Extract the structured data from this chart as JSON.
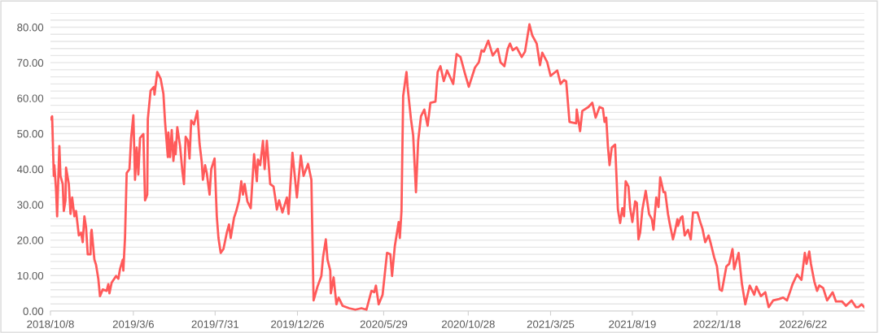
{
  "chart_data": {
    "type": "line",
    "grid": "y",
    "marker": "none",
    "line_style": "solid",
    "xlim": [
      "2018-10-08",
      "2022-10-10"
    ],
    "ylim": [
      0,
      84
    ],
    "xticks": [
      {
        "value": "2018-10-08",
        "label": "2018/10/8"
      },
      {
        "value": "2019-03-06",
        "label": "2019/3/6"
      },
      {
        "value": "2019-07-31",
        "label": "2019/7/31"
      },
      {
        "value": "2019-12-26",
        "label": "2019/12/26"
      },
      {
        "value": "2020-05-29",
        "label": "2020/5/29"
      },
      {
        "value": "2020-10-28",
        "label": "2020/10/28"
      },
      {
        "value": "2021-03-25",
        "label": "2021/3/25"
      },
      {
        "value": "2021-08-19",
        "label": "2021/8/19"
      },
      {
        "value": "2022-01-18",
        "label": "2022/1/18"
      },
      {
        "value": "2022-06-22",
        "label": "2022/6/22"
      }
    ],
    "yticks": [
      {
        "value": 0,
        "label": "0.00"
      },
      {
        "value": 2,
        "label": null
      },
      {
        "value": 4,
        "label": null
      },
      {
        "value": 6,
        "label": null
      },
      {
        "value": 8,
        "label": null
      },
      {
        "value": 10,
        "label": "10.00"
      },
      {
        "value": 12,
        "label": null
      },
      {
        "value": 14,
        "label": null
      },
      {
        "value": 16,
        "label": null
      },
      {
        "value": 18,
        "label": null
      },
      {
        "value": 20,
        "label": "20.00"
      },
      {
        "value": 22,
        "label": null
      },
      {
        "value": 24,
        "label": null
      },
      {
        "value": 26,
        "label": null
      },
      {
        "value": 28,
        "label": null
      },
      {
        "value": 30,
        "label": "30.00"
      },
      {
        "value": 32,
        "label": null
      },
      {
        "value": 34,
        "label": null
      },
      {
        "value": 36,
        "label": null
      },
      {
        "value": 38,
        "label": null
      },
      {
        "value": 40,
        "label": "40.00"
      },
      {
        "value": 42,
        "label": null
      },
      {
        "value": 44,
        "label": null
      },
      {
        "value": 46,
        "label": null
      },
      {
        "value": 48,
        "label": null
      },
      {
        "value": 50,
        "label": "50.00"
      },
      {
        "value": 52,
        "label": null
      },
      {
        "value": 54,
        "label": null
      },
      {
        "value": 56,
        "label": null
      },
      {
        "value": 58,
        "label": null
      },
      {
        "value": 60,
        "label": "60.00"
      },
      {
        "value": 62,
        "label": null
      },
      {
        "value": 64,
        "label": null
      },
      {
        "value": 66,
        "label": null
      },
      {
        "value": 68,
        "label": null
      },
      {
        "value": 70,
        "label": "70.00"
      },
      {
        "value": 72,
        "label": null
      },
      {
        "value": 74,
        "label": null
      },
      {
        "value": 76,
        "label": null
      },
      {
        "value": 78,
        "label": null
      },
      {
        "value": 80,
        "label": "80.00"
      },
      {
        "value": 82,
        "label": null
      },
      {
        "value": 84,
        "label": null
      }
    ],
    "series": [
      {
        "color": "#ff5a5a",
        "x": [
          "2018-10-08",
          "2018-10-11",
          "2018-10-14",
          "2018-10-15",
          "2018-10-18",
          "2018-10-20",
          "2018-10-24",
          "2018-10-26",
          "2018-10-30",
          "2018-11-01",
          "2018-11-04",
          "2018-11-05",
          "2018-11-10",
          "2018-11-13",
          "2018-11-16",
          "2018-11-20",
          "2018-11-23",
          "2018-11-28",
          "2018-12-02",
          "2018-12-05",
          "2018-12-08",
          "2018-12-11",
          "2018-12-14",
          "2018-12-19",
          "2018-12-20",
          "2018-12-21",
          "2018-12-26",
          "2018-12-29",
          "2019-01-02",
          "2019-01-05",
          "2019-01-10",
          "2019-01-17",
          "2019-01-20",
          "2019-01-22",
          "2019-01-26",
          "2019-02-03",
          "2019-02-07",
          "2019-02-10",
          "2019-02-15",
          "2019-02-16",
          "2019-02-19",
          "2019-02-22",
          "2019-02-27",
          "2019-03-02",
          "2019-03-06",
          "2019-03-09",
          "2019-03-12",
          "2019-03-15",
          "2019-03-18",
          "2019-03-24",
          "2019-03-27",
          "2019-03-31",
          "2019-04-01",
          "2019-04-06",
          "2019-04-12",
          "2019-04-13",
          "2019-04-18",
          "2019-04-24",
          "2019-04-29",
          "2019-05-02",
          "2019-05-07",
          "2019-05-08",
          "2019-05-11",
          "2019-05-14",
          "2019-05-17",
          "2019-05-20",
          "2019-05-21",
          "2019-05-24",
          "2019-05-29",
          "2019-06-02",
          "2019-06-05",
          "2019-06-08",
          "2019-06-12",
          "2019-06-15",
          "2019-06-18",
          "2019-06-23",
          "2019-06-29",
          "2019-07-03",
          "2019-07-07",
          "2019-07-09",
          "2019-07-13",
          "2019-07-16",
          "2019-07-21",
          "2019-07-24",
          "2019-07-30",
          "2019-08-03",
          "2019-08-06",
          "2019-08-10",
          "2019-08-15",
          "2019-08-21",
          "2019-08-25",
          "2019-08-28",
          "2019-09-03",
          "2019-09-07",
          "2019-09-12",
          "2019-09-16",
          "2019-09-19",
          "2019-09-22",
          "2019-09-27",
          "2019-10-03",
          "2019-10-09",
          "2019-10-14",
          "2019-10-16",
          "2019-10-20",
          "2019-10-25",
          "2019-10-28",
          "2019-11-01",
          "2019-11-07",
          "2019-11-13",
          "2019-11-16",
          "2019-11-19",
          "2019-11-23",
          "2019-11-29",
          "2019-12-07",
          "2019-12-10",
          "2019-12-17",
          "2019-12-25",
          "2020-01-01",
          "2020-01-06",
          "2020-01-14",
          "2020-01-20",
          "2020-01-21",
          "2020-01-24",
          "2020-01-31",
          "2020-02-07",
          "2020-02-10",
          "2020-02-15",
          "2020-02-18",
          "2020-02-23",
          "2020-02-24",
          "2020-02-29",
          "2020-03-05",
          "2020-03-09",
          "2020-03-16",
          "2020-03-28",
          "2020-04-08",
          "2020-04-19",
          "2020-04-28",
          "2020-05-07",
          "2020-05-12",
          "2020-05-15",
          "2020-05-20",
          "2020-05-27",
          "2020-06-04",
          "2020-06-10",
          "2020-06-13",
          "2020-06-18",
          "2020-06-25",
          "2020-06-27",
          "2020-06-30",
          "2020-07-03",
          "2020-07-09",
          "2020-07-11",
          "2020-07-17",
          "2020-07-21",
          "2020-07-26",
          "2020-07-30",
          "2020-08-04",
          "2020-08-10",
          "2020-08-16",
          "2020-08-21",
          "2020-08-30",
          "2020-09-03",
          "2020-09-08",
          "2020-09-14",
          "2020-09-20",
          "2020-10-01",
          "2020-10-07",
          "2020-10-14",
          "2020-10-22",
          "2020-10-29",
          "2020-11-09",
          "2020-11-16",
          "2020-11-21",
          "2020-11-25",
          "2020-12-03",
          "2020-12-11",
          "2020-12-20",
          "2020-12-25",
          "2021-01-01",
          "2021-01-07",
          "2021-01-11",
          "2021-01-16",
          "2021-01-23",
          "2021-02-01",
          "2021-02-07",
          "2021-02-15",
          "2021-02-20",
          "2021-02-28",
          "2021-03-06",
          "2021-03-10",
          "2021-03-19",
          "2021-03-25",
          "2021-04-06",
          "2021-04-12",
          "2021-04-18",
          "2021-04-22",
          "2021-04-28",
          "2021-05-10",
          "2021-05-11",
          "2021-05-17",
          "2021-05-21",
          "2021-06-01",
          "2021-06-08",
          "2021-06-14",
          "2021-06-21",
          "2021-06-27",
          "2021-06-30",
          "2021-07-03",
          "2021-07-06",
          "2021-07-09",
          "2021-07-13",
          "2021-07-19",
          "2021-07-24",
          "2021-07-28",
          "2021-08-01",
          "2021-08-04",
          "2021-08-07",
          "2021-08-12",
          "2021-08-15",
          "2021-08-19",
          "2021-08-24",
          "2021-08-27",
          "2021-08-30",
          "2021-09-02",
          "2021-09-06",
          "2021-09-12",
          "2021-09-18",
          "2021-09-23",
          "2021-09-26",
          "2021-10-01",
          "2021-10-05",
          "2021-10-08",
          "2021-10-14",
          "2021-10-17",
          "2021-10-22",
          "2021-10-25",
          "2021-10-31",
          "2021-11-03",
          "2021-11-08",
          "2021-11-09",
          "2021-11-14",
          "2021-11-17",
          "2021-11-21",
          "2021-11-27",
          "2021-12-02",
          "2021-12-06",
          "2021-12-14",
          "2021-12-19",
          "2021-12-23",
          "2021-12-28",
          "2022-01-03",
          "2022-01-07",
          "2022-01-13",
          "2022-01-18",
          "2022-01-23",
          "2022-01-27",
          "2022-02-04",
          "2022-02-09",
          "2022-02-15",
          "2022-02-18",
          "2022-02-26",
          "2022-03-04",
          "2022-03-10",
          "2022-03-18",
          "2022-03-26",
          "2022-03-30",
          "2022-04-07",
          "2022-04-15",
          "2022-04-21",
          "2022-04-29",
          "2022-05-10",
          "2022-05-17",
          "2022-05-24",
          "2022-05-30",
          "2022-06-03",
          "2022-06-11",
          "2022-06-19",
          "2022-06-25",
          "2022-06-28",
          "2022-07-03",
          "2022-07-06",
          "2022-07-12",
          "2022-07-17",
          "2022-07-21",
          "2022-07-28",
          "2022-08-04",
          "2022-08-14",
          "2022-08-20",
          "2022-08-31",
          "2022-09-07",
          "2022-09-17",
          "2022-09-25",
          "2022-09-29",
          "2022-10-05",
          "2022-10-10"
        ],
        "values": [
          54.1,
          54.9,
          38.1,
          41.1,
          34.3,
          26.7,
          46.5,
          38.1,
          35.8,
          28.2,
          31.2,
          40.4,
          35.8,
          27.4,
          32.0,
          26.7,
          28.2,
          21.3,
          22.1,
          19.4,
          26.7,
          23.6,
          16.0,
          16.0,
          22.1,
          22.9,
          14.5,
          13.0,
          9.1,
          4.2,
          6.1,
          5.7,
          7.6,
          5.0,
          8.0,
          9.9,
          9.1,
          11.8,
          14.5,
          11.4,
          20.6,
          38.9,
          40.0,
          48.8,
          55.2,
          37.0,
          46.1,
          38.5,
          48.8,
          49.9,
          31.2,
          32.8,
          54.1,
          62.1,
          63.2,
          61.0,
          67.4,
          65.5,
          61.3,
          53.3,
          43.4,
          50.3,
          43.4,
          51.0,
          42.3,
          47.6,
          44.2,
          51.8,
          46.5,
          39.6,
          35.8,
          49.1,
          48.0,
          43.0,
          53.7,
          52.6,
          56.4,
          47.2,
          41.9,
          37.0,
          41.1,
          38.9,
          32.8,
          40.0,
          43.0,
          26.7,
          20.6,
          16.4,
          17.5,
          22.1,
          24.4,
          20.6,
          26.3,
          28.2,
          31.2,
          36.6,
          32.8,
          35.8,
          30.9,
          29.0,
          44.2,
          36.6,
          42.7,
          41.1,
          48.0,
          40.0,
          48.0,
          35.8,
          35.1,
          32.0,
          28.6,
          31.2,
          27.8,
          32.0,
          27.4,
          44.6,
          32.0,
          43.8,
          38.1,
          41.5,
          37.0,
          28.2,
          3.0,
          6.9,
          9.9,
          15.2,
          20.2,
          14.5,
          11.4,
          5.0,
          9.5,
          1.9,
          3.8,
          1.5,
          0.8,
          0.4,
          0.8,
          0.4,
          5.7,
          5.3,
          7.2,
          1.9,
          4.6,
          16.4,
          16.0,
          9.9,
          18.3,
          25.1,
          20.6,
          28.2,
          60.6,
          67.4,
          63.2,
          54.1,
          49.5,
          33.5,
          48.0,
          54.9,
          56.8,
          52.2,
          58.7,
          59.0,
          67.4,
          69.0,
          64.8,
          67.8,
          64.0,
          72.4,
          71.6,
          67.0,
          63.2,
          68.6,
          70.1,
          73.5,
          73.1,
          76.2,
          72.0,
          73.9,
          70.1,
          69.0,
          73.9,
          75.4,
          73.5,
          74.3,
          71.6,
          73.1,
          80.8,
          77.7,
          75.4,
          69.3,
          72.8,
          70.1,
          66.3,
          67.8,
          64.0,
          65.1,
          64.8,
          53.3,
          52.9,
          56.8,
          50.7,
          56.4,
          57.5,
          58.7,
          54.5,
          57.5,
          57.1,
          53.3,
          54.5,
          46.5,
          41.1,
          46.1,
          46.9,
          28.6,
          24.8,
          29.0,
          26.7,
          36.6,
          35.1,
          29.0,
          25.1,
          30.9,
          30.5,
          20.2,
          22.1,
          28.6,
          33.9,
          27.4,
          25.9,
          22.9,
          32.0,
          29.3,
          37.7,
          33.5,
          33.5,
          27.4,
          24.8,
          20.2,
          22.1,
          25.9,
          24.0,
          26.3,
          26.7,
          21.3,
          22.9,
          20.2,
          27.8,
          27.8,
          25.1,
          23.2,
          19.4,
          21.3,
          19.0,
          15.2,
          12.6,
          6.1,
          5.7,
          12.6,
          13.3,
          17.5,
          11.8,
          16.4,
          7.6,
          1.9,
          7.2,
          4.6,
          6.9,
          4.2,
          5.3,
          1.1,
          3.0,
          3.4,
          3.8,
          3.0,
          5.7,
          7.6,
          10.3,
          8.8,
          16.4,
          13.3,
          16.8,
          13.3,
          8.4,
          5.7,
          7.2,
          6.5,
          3.0,
          5.3,
          2.7,
          2.7,
          1.5,
          3.0,
          1.1,
          1.1,
          1.9,
          1.1
        ]
      }
    ]
  }
}
